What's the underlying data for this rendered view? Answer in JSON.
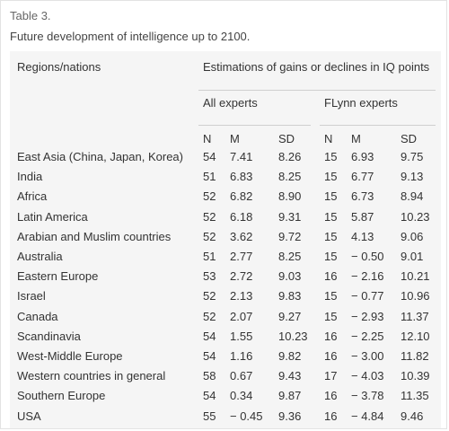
{
  "caption": {
    "label": "Table 3.",
    "title": "Future development of intelligence up to 2100."
  },
  "table": {
    "header": {
      "regions": "Regions/nations",
      "estimations": "Estimations of gains or declines in IQ points",
      "group_all": "All experts",
      "group_flynn": "FLynn experts",
      "subcols": [
        "N",
        "M",
        "SD",
        "N",
        "M",
        "SD"
      ]
    },
    "rows": [
      {
        "region": "East Asia (China, Japan, Korea)",
        "all_n": "54",
        "all_m": "7.41",
        "all_sd": "8.26",
        "fl_n": "15",
        "fl_m": "6.93",
        "fl_sd": "9.75"
      },
      {
        "region": "India",
        "all_n": "51",
        "all_m": "6.83",
        "all_sd": "8.25",
        "fl_n": "15",
        "fl_m": "6.77",
        "fl_sd": "9.13"
      },
      {
        "region": "Africa",
        "all_n": "52",
        "all_m": "6.82",
        "all_sd": "8.90",
        "fl_n": "15",
        "fl_m": "6.73",
        "fl_sd": "8.94"
      },
      {
        "region": "Latin America",
        "all_n": "52",
        "all_m": "6.18",
        "all_sd": "9.31",
        "fl_n": "15",
        "fl_m": "5.87",
        "fl_sd": "10.23"
      },
      {
        "region": "Arabian and Muslim countries",
        "all_n": "52",
        "all_m": "3.62",
        "all_sd": "9.72",
        "fl_n": "15",
        "fl_m": "4.13",
        "fl_sd": "9.06"
      },
      {
        "region": "Australia",
        "all_n": "51",
        "all_m": "2.77",
        "all_sd": "8.25",
        "fl_n": "15",
        "fl_m": "− 0.50",
        "fl_sd": "9.01"
      },
      {
        "region": "Eastern Europe",
        "all_n": "53",
        "all_m": "2.72",
        "all_sd": "9.03",
        "fl_n": "16",
        "fl_m": "− 2.16",
        "fl_sd": "10.21"
      },
      {
        "region": "Israel",
        "all_n": "52",
        "all_m": "2.13",
        "all_sd": "9.83",
        "fl_n": "15",
        "fl_m": "− 0.77",
        "fl_sd": "10.96"
      },
      {
        "region": "Canada",
        "all_n": "52",
        "all_m": "2.07",
        "all_sd": "9.27",
        "fl_n": "15",
        "fl_m": "− 2.93",
        "fl_sd": "11.37"
      },
      {
        "region": "Scandinavia",
        "all_n": "54",
        "all_m": "1.55",
        "all_sd": "10.23",
        "fl_n": "16",
        "fl_m": "− 2.25",
        "fl_sd": "12.10"
      },
      {
        "region": "West-Middle Europe",
        "all_n": "54",
        "all_m": "1.16",
        "all_sd": "9.82",
        "fl_n": "16",
        "fl_m": "− 3.00",
        "fl_sd": "11.82"
      },
      {
        "region": "Western countries in general",
        "all_n": "58",
        "all_m": "0.67",
        "all_sd": "9.43",
        "fl_n": "17",
        "fl_m": "− 4.03",
        "fl_sd": "10.39"
      },
      {
        "region": "Southern Europe",
        "all_n": "54",
        "all_m": "0.34",
        "all_sd": "9.87",
        "fl_n": "16",
        "fl_m": "− 3.78",
        "fl_sd": "11.35"
      },
      {
        "region": "USA",
        "all_n": "55",
        "all_m": "− 0.45",
        "all_sd": "9.36",
        "fl_n": "16",
        "fl_m": "− 4.84",
        "fl_sd": "9.46"
      }
    ]
  }
}
